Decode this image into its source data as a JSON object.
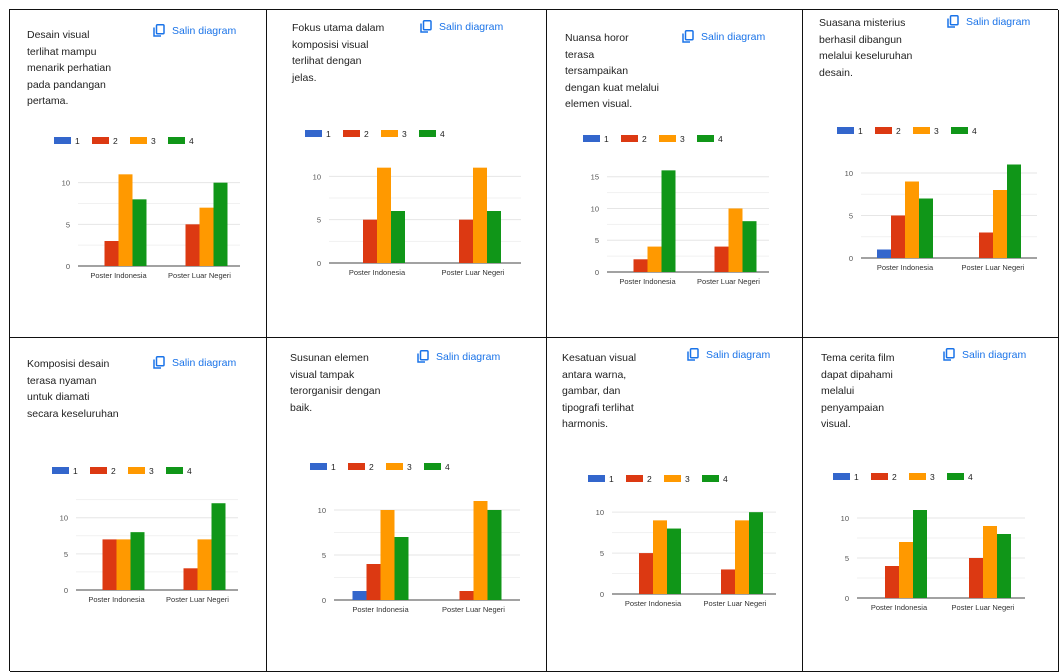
{
  "copy_label": "Salin diagram",
  "colors": {
    "series": [
      "#3366cc",
      "#dc3912",
      "#ff9900",
      "#109618"
    ],
    "grid": "#e6e6e6",
    "axis": "#444444",
    "text": "#222222",
    "link": "#1a73e8"
  },
  "chart_data": [
    {
      "type": "bar",
      "question": "Desain visual\nterlihat mampu\nmenarik perhatian\npada pandangan\npertama.",
      "categories": [
        "Poster Indonesia",
        "Poster Luar Negeri"
      ],
      "series": [
        {
          "name": "1",
          "values": [
            0,
            0
          ]
        },
        {
          "name": "2",
          "values": [
            3,
            5
          ]
        },
        {
          "name": "3",
          "values": [
            11,
            7
          ]
        },
        {
          "name": "4",
          "values": [
            8,
            10
          ]
        }
      ],
      "yticks": [
        "0",
        "5",
        "10"
      ],
      "ylim": [
        0,
        12
      ],
      "legend": "top"
    },
    {
      "type": "bar",
      "question": "Fokus utama dalam\nkomposisi visual\nterlihat dengan\njelas.",
      "categories": [
        "Poster Indonesia",
        "Poster Luar Negeri"
      ],
      "series": [
        {
          "name": "1",
          "values": [
            0,
            0
          ]
        },
        {
          "name": "2",
          "values": [
            5,
            5
          ]
        },
        {
          "name": "3",
          "values": [
            11,
            11
          ]
        },
        {
          "name": "4",
          "values": [
            6,
            6
          ]
        }
      ],
      "yticks": [
        "0",
        "5",
        "10"
      ],
      "ylim": [
        0,
        12
      ],
      "legend": "top"
    },
    {
      "type": "bar",
      "question": "Nuansa horor\nterasa\ntersampaikan\ndengan kuat melalui\nelemen visual.",
      "categories": [
        "Poster Indonesia",
        "Poster Luar Negeri"
      ],
      "series": [
        {
          "name": "1",
          "values": [
            0,
            0
          ]
        },
        {
          "name": "2",
          "values": [
            2,
            4
          ]
        },
        {
          "name": "3",
          "values": [
            4,
            10
          ]
        },
        {
          "name": "4",
          "values": [
            16,
            8
          ]
        }
      ],
      "yticks": [
        "0",
        "5",
        "10",
        "15"
      ],
      "ylim": [
        0,
        17
      ],
      "legend": "top"
    },
    {
      "type": "bar",
      "question": "Suasana misterius\nberhasil dibangun\nmelalui keseluruhan\ndesain.",
      "categories": [
        "Poster Indonesia",
        "Poster Luar Negeri"
      ],
      "series": [
        {
          "name": "1",
          "values": [
            1,
            0
          ]
        },
        {
          "name": "2",
          "values": [
            5,
            3
          ]
        },
        {
          "name": "3",
          "values": [
            9,
            8
          ]
        },
        {
          "name": "4",
          "values": [
            7,
            11
          ]
        }
      ],
      "yticks": [
        "0",
        "5",
        "10"
      ],
      "ylim": [
        0,
        12
      ],
      "legend": "top"
    },
    {
      "type": "bar",
      "question": "Komposisi desain\nterasa nyaman\nuntuk diamati\nsecara keseluruhan",
      "categories": [
        "Poster Indonesia",
        "Poster Luar Negeri"
      ],
      "series": [
        {
          "name": "1",
          "values": [
            0,
            0
          ]
        },
        {
          "name": "2",
          "values": [
            7,
            3
          ]
        },
        {
          "name": "3",
          "values": [
            7,
            7
          ]
        },
        {
          "name": "4",
          "values": [
            8,
            12
          ]
        }
      ],
      "yticks": [
        "0",
        "5",
        "10"
      ],
      "ylim": [
        0,
        13
      ],
      "legend": "top"
    },
    {
      "type": "bar",
      "question": "Susunan elemen\nvisual tampak\nterorganisir dengan\nbaik.",
      "categories": [
        "Poster Indonesia",
        "Poster Luar Negeri"
      ],
      "series": [
        {
          "name": "1",
          "values": [
            1,
            0
          ]
        },
        {
          "name": "2",
          "values": [
            4,
            1
          ]
        },
        {
          "name": "3",
          "values": [
            10,
            11
          ]
        },
        {
          "name": "4",
          "values": [
            7,
            10
          ]
        }
      ],
      "yticks": [
        "0",
        "5",
        "10"
      ],
      "ylim": [
        0,
        12
      ],
      "legend": "top"
    },
    {
      "type": "bar",
      "question": "Kesatuan visual\nantara warna,\ngambar, dan\ntipografi terlihat\nharmonis.",
      "categories": [
        "Poster Indonesia",
        "Poster Luar Negeri"
      ],
      "series": [
        {
          "name": "1",
          "values": [
            0,
            0
          ]
        },
        {
          "name": "2",
          "values": [
            5,
            3
          ]
        },
        {
          "name": "3",
          "values": [
            9,
            9
          ]
        },
        {
          "name": "4",
          "values": [
            8,
            10
          ]
        }
      ],
      "yticks": [
        "0",
        "5",
        "10"
      ],
      "ylim": [
        0,
        11
      ],
      "legend": "top"
    },
    {
      "type": "bar",
      "question": "Tema cerita film\ndapat dipahami\nmelalui\npenyampaian\nvisual.",
      "categories": [
        "Poster Indonesia",
        "Poster Luar Negeri"
      ],
      "series": [
        {
          "name": "1",
          "values": [
            0,
            0
          ]
        },
        {
          "name": "2",
          "values": [
            4,
            5
          ]
        },
        {
          "name": "3",
          "values": [
            7,
            9
          ]
        },
        {
          "name": "4",
          "values": [
            11,
            8
          ]
        }
      ],
      "yticks": [
        "0",
        "5",
        "10"
      ],
      "ylim": [
        0,
        12
      ],
      "legend": "top"
    }
  ]
}
